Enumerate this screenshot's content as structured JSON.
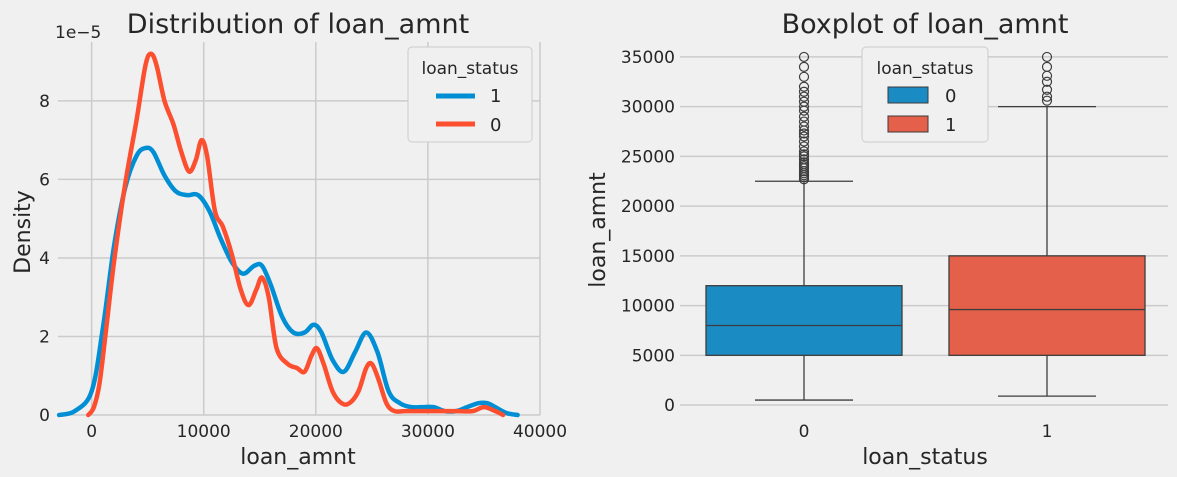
{
  "chart_data": [
    {
      "type": "line",
      "title": "Distribution of loan_amnt",
      "xlabel": "loan_amnt",
      "ylabel": "Density",
      "offset_text": "1e−5",
      "xlim": [
        -3000,
        40000
      ],
      "ylim": [
        0,
        9.5
      ],
      "xticks": [
        0,
        10000,
        20000,
        30000,
        40000
      ],
      "xtick_labels": [
        "0",
        "10000",
        "20000",
        "30000",
        "40000"
      ],
      "yticks": [
        0,
        2,
        4,
        6,
        8
      ],
      "ytick_labels": [
        "0",
        "2",
        "4",
        "6",
        "8"
      ],
      "grid": true,
      "legend": {
        "title": "loan_status",
        "position": "top-right",
        "entries": [
          "1",
          "0"
        ]
      },
      "series": [
        {
          "name": "1",
          "color": "#008fd5",
          "x": [
            -2900,
            -1500,
            0,
            1000,
            2000,
            3000,
            4000,
            4800,
            5500,
            6500,
            7500,
            8500,
            9500,
            10500,
            11500,
            12500,
            13500,
            14500,
            15200,
            16000,
            17000,
            18000,
            19000,
            19800,
            20500,
            21500,
            22500,
            23500,
            24500,
            25500,
            26500,
            27500,
            28500,
            29500,
            30500,
            31500,
            32500,
            33500,
            34500,
            35300,
            36000,
            37000,
            38000
          ],
          "y": [
            0,
            0.1,
            0.6,
            2.2,
            4.3,
            5.8,
            6.6,
            6.8,
            6.7,
            6.1,
            5.7,
            5.6,
            5.6,
            5.2,
            4.5,
            3.9,
            3.6,
            3.8,
            3.8,
            3.3,
            2.5,
            2.1,
            2.1,
            2.3,
            2.1,
            1.4,
            1.1,
            1.6,
            2.1,
            1.6,
            0.6,
            0.3,
            0.2,
            0.2,
            0.2,
            0.1,
            0.1,
            0.2,
            0.3,
            0.3,
            0.2,
            0.05,
            0
          ]
        },
        {
          "name": "0",
          "color": "#fc4f30",
          "x": [
            -300,
            200,
            700,
            1300,
            2000,
            3000,
            4000,
            4800,
            5300,
            5800,
            6500,
            7300,
            8000,
            8700,
            9300,
            9800,
            10300,
            11000,
            11700,
            12500,
            13300,
            14000,
            14700,
            15200,
            15800,
            16500,
            17500,
            18300,
            19000,
            19600,
            20100,
            20700,
            21500,
            22300,
            23000,
            23800,
            24500,
            25000,
            25600,
            26300,
            27000,
            28000,
            29500,
            31000,
            32500,
            34000,
            35000,
            36000,
            36700
          ],
          "y": [
            0,
            0.2,
            0.8,
            2.2,
            3.9,
            5.9,
            7.5,
            8.9,
            9.2,
            8.9,
            8.0,
            7.4,
            6.7,
            6.2,
            6.5,
            7.0,
            6.6,
            5.2,
            4.8,
            4.1,
            3.2,
            2.8,
            3.2,
            3.5,
            3.0,
            1.7,
            1.3,
            1.2,
            1.1,
            1.5,
            1.7,
            1.3,
            0.6,
            0.3,
            0.3,
            0.6,
            1.2,
            1.3,
            0.9,
            0.3,
            0.1,
            0.1,
            0.1,
            0.1,
            0.1,
            0.1,
            0.2,
            0.1,
            0
          ]
        }
      ]
    },
    {
      "type": "boxplot",
      "title": "Boxplot of loan_amnt",
      "xlabel": "loan_status",
      "ylabel": "loan_amnt",
      "ylim": [
        -1000,
        36500
      ],
      "yticks": [
        0,
        5000,
        10000,
        15000,
        20000,
        25000,
        30000,
        35000
      ],
      "ytick_labels": [
        "0",
        "5000",
        "10000",
        "15000",
        "20000",
        "25000",
        "30000",
        "35000"
      ],
      "categories": [
        "0",
        "1"
      ],
      "grid": true,
      "legend": {
        "title": "loan_status",
        "position": "top-center",
        "entries": [
          "0",
          "1"
        ]
      },
      "boxes": [
        {
          "category": "0",
          "color": "#1b8bc4",
          "whisker_low": 500,
          "q1": 5000,
          "median": 8000,
          "q3": 12000,
          "whisker_high": 22500,
          "outliers": [
            22700,
            22900,
            23100,
            23300,
            23500,
            23800,
            24000,
            24200,
            24400,
            24700,
            25000,
            25200,
            25500,
            26000,
            26500,
            27000,
            27300,
            27600,
            28000,
            28500,
            29000,
            29600,
            30000,
            30500,
            31000,
            31500,
            32000,
            33000,
            34000,
            35000
          ]
        },
        {
          "category": "1",
          "color": "#e5604a",
          "whisker_low": 900,
          "q1": 5000,
          "median": 9600,
          "q3": 15000,
          "whisker_high": 30000,
          "outliers": [
            30600,
            31000,
            31700,
            32500,
            33100,
            34000,
            35000
          ]
        }
      ]
    }
  ]
}
